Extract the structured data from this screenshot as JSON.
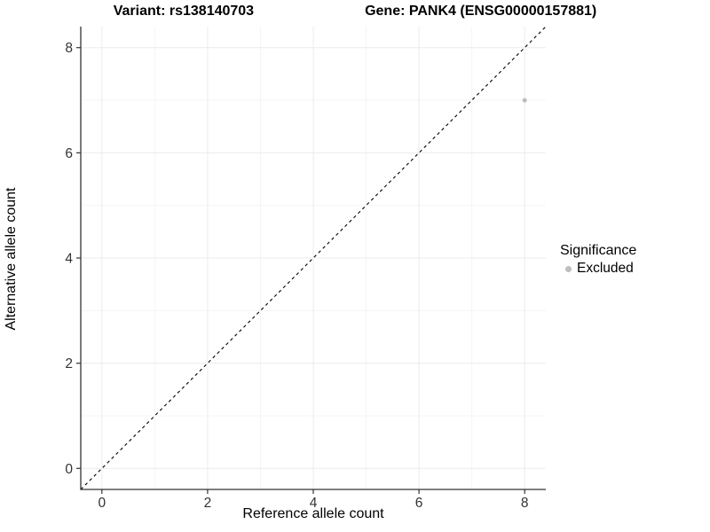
{
  "title": {
    "left": "Variant: rs138140703",
    "right": "Gene: PANK4 (ENSG00000157881)"
  },
  "chart_data": {
    "type": "scatter",
    "title": "Variant: rs138140703    Gene: PANK4 (ENSG00000157881)",
    "xlabel": "Reference allele count",
    "ylabel": "Alternative allele count",
    "xlim": [
      -0.4,
      8.4
    ],
    "ylim": [
      -0.4,
      8.4
    ],
    "xticks": [
      0,
      2,
      4,
      6,
      8
    ],
    "yticks": [
      0,
      2,
      4,
      6,
      8
    ],
    "xminor": [
      1,
      3,
      5,
      7
    ],
    "yminor": [
      1,
      3,
      5,
      7
    ],
    "grid": "on",
    "legend_position": "right",
    "reference_line": {
      "type": "identity",
      "style": "dashed",
      "from": [
        -0.4,
        -0.4
      ],
      "to": [
        8.4,
        8.4
      ],
      "color": "#000000"
    },
    "series": [
      {
        "name": "Excluded",
        "color": "#bebebe",
        "marker": "circle",
        "points": [
          [
            8,
            7
          ]
        ]
      }
    ],
    "legend": {
      "title": "Significance",
      "items": [
        {
          "label": "Excluded",
          "color": "#bebebe"
        }
      ]
    }
  },
  "colors": {
    "background": "#ffffff",
    "grid_major": "#ebebeb",
    "grid_minor": "#f4f4f4",
    "axis": "#333333",
    "tick_text": "#333333",
    "point": "#bebebe",
    "text": "#000000"
  }
}
